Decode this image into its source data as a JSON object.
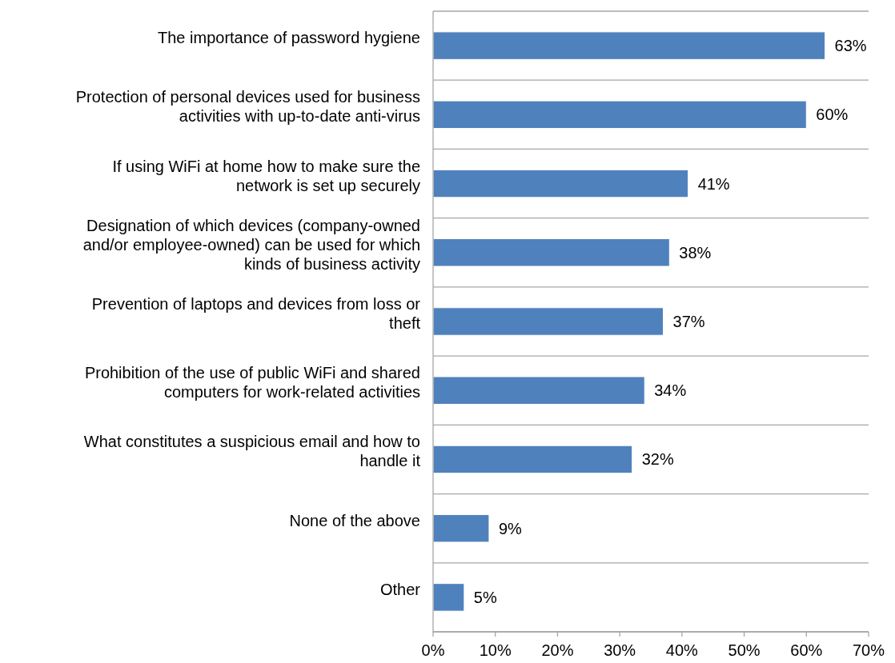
{
  "chart_data": {
    "type": "bar",
    "orientation": "horizontal",
    "categories": [
      "The importance of password hygiene",
      "Protection of personal devices used for business activities with up-to-date anti-virus",
      "If using WiFi at home how to make sure the network is set up securely",
      "Designation of which devices (company-owned and/or employee-owned) can be used for which kinds of business activity",
      "Prevention of laptops and devices from loss or theft",
      "Prohibition of the use of public WiFi and shared computers for work-related activities",
      "What constitutes a suspicious email and how to handle it",
      "None of the above",
      "Other"
    ],
    "values": [
      63,
      60,
      41,
      38,
      37,
      34,
      32,
      9,
      5
    ],
    "value_labels": [
      "63%",
      "60%",
      "41%",
      "38%",
      "37%",
      "34%",
      "32%",
      "9%",
      "5%"
    ],
    "color": "#4f81bd",
    "xlim": [
      0,
      70
    ],
    "xticks": [
      {
        "value": 0,
        "label": "0%"
      },
      {
        "value": 10,
        "label": "10%"
      },
      {
        "value": 20,
        "label": "20%"
      },
      {
        "value": 30,
        "label": "30%"
      },
      {
        "value": 40,
        "label": "40%"
      },
      {
        "value": 50,
        "label": "50%"
      },
      {
        "value": 60,
        "label": "60%"
      },
      {
        "value": 70,
        "label": "70%"
      }
    ],
    "grid": "y"
  }
}
